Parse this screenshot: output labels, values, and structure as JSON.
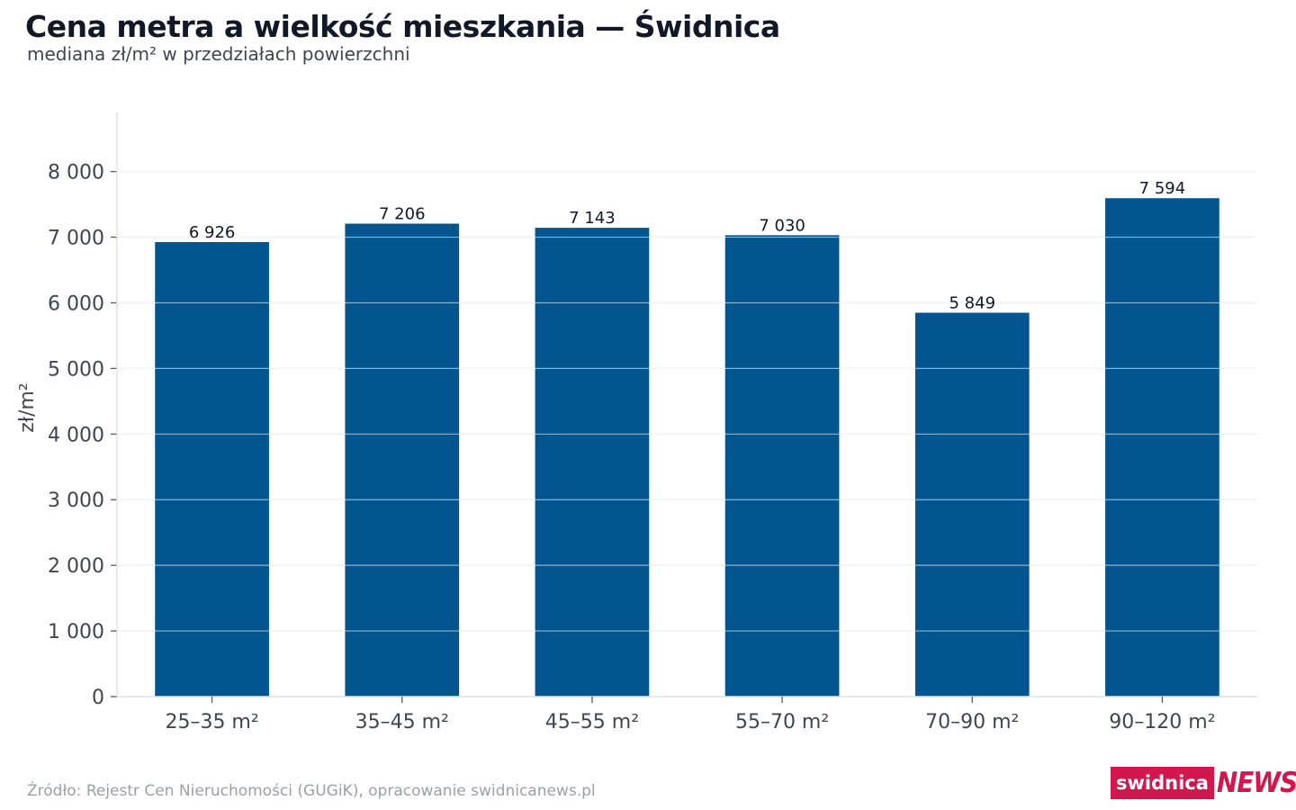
{
  "chart_data": {
    "type": "bar",
    "title": "Cena metra a wielkość mieszkania — Świdnica",
    "subtitle": "mediana zł/m² w przedziałach powierzchni",
    "xlabel": "",
    "ylabel": "zł/m²",
    "categories": [
      "25–35 m²",
      "35–45 m²",
      "45–55 m²",
      "55–70 m²",
      "70–90 m²",
      "90–120 m²"
    ],
    "values": [
      6926,
      7206,
      7143,
      7030,
      5849,
      7594
    ],
    "value_labels": [
      "6 926",
      "7 206",
      "7 143",
      "7 030",
      "5 849",
      "7 594"
    ],
    "ylim": [
      0,
      8900
    ],
    "yticks": [
      0,
      1000,
      2000,
      3000,
      4000,
      5000,
      6000,
      7000,
      8000
    ],
    "ytick_labels": [
      "0",
      "1 000",
      "2 000",
      "3 000",
      "4 000",
      "5 000",
      "6 000",
      "7 000",
      "8 000"
    ],
    "grid": true,
    "bar_color": "#02558e"
  },
  "footer": {
    "source": "Źródło: Rejestr Cen Nieruchomości (GUGiK), opracowanie swidnicanews.pl",
    "brand_part1": "swidnica",
    "brand_part2": "NEWS",
    "brand_color": "#d4164f"
  }
}
